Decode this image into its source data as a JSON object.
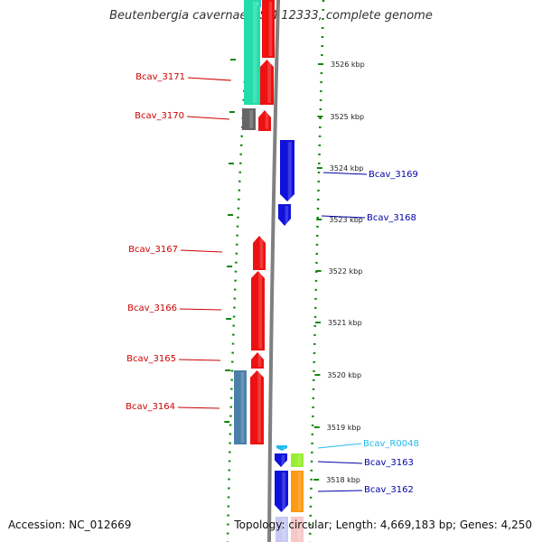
{
  "title": "Beutenbergia cavernae DSM 12333, complete genome",
  "footer": {
    "accession": "Accession: NC_012669",
    "summary": "Topology: circular; Length: 4,669,183 bp; Genes: 4,250"
  },
  "colors": {
    "forward": "#ee1111",
    "reverse": "#1111dd",
    "rna": "#22bbee",
    "backbone": "#808080",
    "dots": "#118811",
    "tealBlock": "#22ddaa",
    "grayBlock": "#666666",
    "steelBlock": "#4a7fa8",
    "limeBlock": "#99ee33",
    "orangeBlock": "#ff9911"
  },
  "ticks": [
    {
      "label": "3526 kbp"
    },
    {
      "label": "3525 kbp"
    },
    {
      "label": "3524 kbp"
    },
    {
      "label": "3523 kbp"
    },
    {
      "label": "3522 kbp"
    },
    {
      "label": "3521 kbp"
    },
    {
      "label": "3520 kbp"
    },
    {
      "label": "3519 kbp"
    },
    {
      "label": "3518 kbp"
    }
  ],
  "genes": [
    {
      "name": "Bcav_3171",
      "side": "left"
    },
    {
      "name": "Bcav_3170",
      "side": "left"
    },
    {
      "name": "Bcav_3169",
      "side": "right"
    },
    {
      "name": "Bcav_3168",
      "side": "right"
    },
    {
      "name": "Bcav_3167",
      "side": "left"
    },
    {
      "name": "Bcav_3166",
      "side": "left"
    },
    {
      "name": "Bcav_3165",
      "side": "left"
    },
    {
      "name": "Bcav_3164",
      "side": "left"
    },
    {
      "name": "Bcav_R0048",
      "side": "right"
    },
    {
      "name": "Bcav_3163",
      "side": "right"
    },
    {
      "name": "Bcav_3162",
      "side": "right"
    }
  ]
}
